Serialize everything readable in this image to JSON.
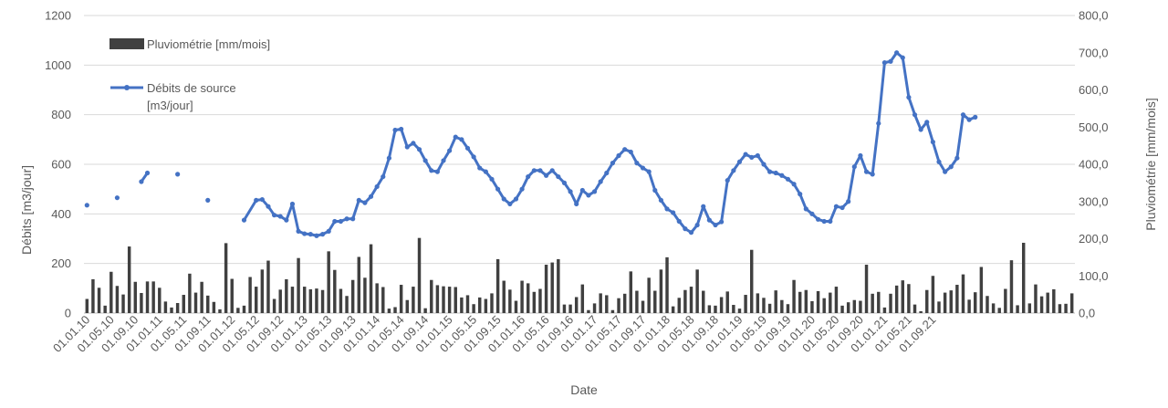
{
  "chart_data": {
    "type": "bar+line",
    "xlabel": "Date",
    "ylabel_left": "Débits [m3/jour]",
    "ylabel_right": "Pluviométrie [mm/mois]",
    "y_left_ticks": [
      "0",
      "200",
      "400",
      "600",
      "800",
      "1000",
      "1200"
    ],
    "y_left_range": [
      0,
      1200
    ],
    "y_right_ticks": [
      "0,0",
      "100,0",
      "200,0",
      "300,0",
      "400,0",
      "500,0",
      "600,0",
      "700,0",
      "800,0"
    ],
    "y_right_range": [
      0,
      800
    ],
    "x_tick_labels": [
      "01.01.10",
      "01.05.10",
      "01.09.10",
      "01.01.11",
      "01.05.11",
      "01.09.11",
      "01.01.12",
      "01.05.12",
      "01.09.12",
      "01.01.13",
      "01.05.13",
      "01.09.13",
      "01.01.14",
      "01.05.14",
      "01.09.14",
      "01.01.15",
      "01.05.15",
      "01.09.15",
      "01.01.16",
      "01.05.16",
      "01.09.16",
      "01.01.17",
      "01.05.17",
      "01.09.17",
      "01.01.18",
      "01.05.18",
      "01.09.18",
      "01.01.19",
      "01.05.19",
      "01.09.19",
      "01.01.20",
      "01.05.20",
      "01.09.20",
      "01.01.21",
      "01.05.21",
      "01.09.21"
    ],
    "grid": true,
    "legend_position": "top-left",
    "series": [
      {
        "name": "Pluviométrie [mm/mois]",
        "type": "bar",
        "axis": "right",
        "color": "#404040",
        "values": [
          38,
          91,
          68,
          20,
          111,
          73,
          50,
          179,
          84,
          54,
          85,
          85,
          68,
          31,
          15,
          27,
          49,
          106,
          55,
          84,
          47,
          30,
          10,
          188,
          92,
          14,
          20,
          97,
          71,
          117,
          141,
          38,
          63,
          91,
          71,
          148,
          71,
          64,
          66,
          62,
          166,
          116,
          65,
          46,
          89,
          151,
          95,
          185,
          80,
          70,
          12,
          16,
          76,
          35,
          71,
          202,
          13,
          89,
          75,
          72,
          71,
          70,
          42,
          48,
          24,
          42,
          38,
          53,
          145,
          87,
          63,
          33,
          87,
          80,
          57,
          65,
          130,
          136,
          145,
          23,
          23,
          43,
          77,
          8,
          26,
          53,
          48,
          8,
          40,
          52,
          112,
          60,
          33,
          95,
          60,
          117,
          150,
          18,
          41,
          62,
          71,
          117,
          60,
          21,
          20,
          43,
          58,
          22,
          12,
          49,
          170,
          53,
          41,
          25,
          61,
          35,
          24,
          89,
          57,
          62,
          32,
          59,
          40,
          55,
          71,
          20,
          29,
          35,
          33,
          130,
          52,
          57,
          15,
          52,
          74,
          88,
          78,
          23,
          5,
          62,
          100,
          31,
          55,
          61,
          76,
          104,
          36,
          56,
          124,
          46,
          26,
          14,
          65,
          142,
          21,
          189,
          26,
          77,
          45,
          55,
          64,
          24,
          25,
          53
        ],
        "notes": "monthly values, Jan 2010 to ~Dec 2021"
      },
      {
        "name": "Débits de source [m3/jour]",
        "type": "line",
        "axis": "left",
        "color": "#4472C4",
        "segments": [
          [
            [
              0,
              435
            ]
          ],
          [
            [
              5,
              465
            ]
          ],
          [
            [
              9,
              530
            ],
            [
              10,
              565
            ]
          ],
          [
            [
              15,
              560
            ]
          ],
          [
            [
              20,
              455
            ]
          ],
          [
            [
              26,
              375
            ],
            [
              28,
              455
            ],
            [
              29,
              458
            ],
            [
              30,
              430
            ],
            [
              31,
              395
            ],
            [
              32,
              390
            ],
            [
              33,
              375
            ],
            [
              34,
              440
            ],
            [
              35,
              330
            ],
            [
              36,
              320
            ],
            [
              37,
              318
            ],
            [
              38,
              312
            ],
            [
              39,
              318
            ],
            [
              40,
              330
            ],
            [
              41,
              370
            ],
            [
              42,
              370
            ],
            [
              43,
              380
            ],
            [
              44,
              380
            ],
            [
              45,
              455
            ],
            [
              46,
              445
            ],
            [
              47,
              470
            ],
            [
              48,
              510
            ],
            [
              49,
              550
            ],
            [
              50,
              625
            ],
            [
              51,
              738
            ],
            [
              52,
              742
            ],
            [
              53,
              670
            ],
            [
              54,
              685
            ],
            [
              55,
              660
            ],
            [
              56,
              615
            ],
            [
              57,
              575
            ],
            [
              58,
              570
            ],
            [
              59,
              615
            ],
            [
              60,
              655
            ],
            [
              61,
              710
            ],
            [
              62,
              700
            ],
            [
              63,
              665
            ],
            [
              64,
              630
            ],
            [
              65,
              585
            ],
            [
              66,
              570
            ],
            [
              67,
              540
            ],
            [
              68,
              500
            ],
            [
              69,
              460
            ],
            [
              70,
              440
            ],
            [
              71,
              460
            ],
            [
              72,
              500
            ],
            [
              73,
              550
            ],
            [
              74,
              575
            ],
            [
              75,
              575
            ],
            [
              76,
              555
            ],
            [
              77,
              575
            ],
            [
              78,
              550
            ],
            [
              79,
              525
            ],
            [
              80,
              490
            ],
            [
              81,
              440
            ],
            [
              82,
              495
            ],
            [
              83,
              475
            ],
            [
              84,
              490
            ],
            [
              85,
              530
            ],
            [
              86,
              565
            ],
            [
              87,
              605
            ],
            [
              88,
              635
            ],
            [
              89,
              660
            ],
            [
              90,
              650
            ],
            [
              91,
              605
            ],
            [
              92,
              585
            ],
            [
              93,
              570
            ],
            [
              94,
              495
            ],
            [
              95,
              455
            ],
            [
              96,
              420
            ],
            [
              97,
              405
            ],
            [
              98,
              370
            ],
            [
              99,
              340
            ],
            [
              100,
              325
            ],
            [
              101,
              355
            ],
            [
              102,
              430
            ],
            [
              103,
              375
            ],
            [
              104,
              355
            ],
            [
              105,
              368
            ],
            [
              106,
              535
            ],
            [
              107,
              575
            ],
            [
              108,
              610
            ],
            [
              109,
              640
            ],
            [
              110,
              628
            ],
            [
              111,
              635
            ],
            [
              112,
              600
            ],
            [
              113,
              570
            ],
            [
              114,
              565
            ],
            [
              115,
              555
            ],
            [
              116,
              540
            ],
            [
              117,
              520
            ],
            [
              118,
              480
            ],
            [
              119,
              420
            ],
            [
              120,
              400
            ],
            [
              121,
              378
            ],
            [
              122,
              370
            ],
            [
              123,
              370
            ],
            [
              124,
              430
            ],
            [
              125,
              425
            ],
            [
              126,
              450
            ],
            [
              127,
              590
            ],
            [
              128,
              635
            ],
            [
              129,
              570
            ],
            [
              130,
              560
            ],
            [
              131,
              765
            ],
            [
              132,
              1010
            ],
            [
              133,
              1015
            ],
            [
              134,
              1050
            ],
            [
              135,
              1030
            ],
            [
              136,
              870
            ],
            [
              137,
              800
            ],
            [
              138,
              740
            ],
            [
              139,
              770
            ],
            [
              140,
              690
            ],
            [
              141,
              610
            ],
            [
              142,
              570
            ],
            [
              143,
              590
            ],
            [
              144,
              625
            ],
            [
              145,
              800
            ],
            [
              146,
              780
            ],
            [
              147,
              790
            ]
          ]
        ]
      }
    ]
  },
  "legend": {
    "rain_label": "Pluviométrie [mm/mois]",
    "flow_label_line1": "Débits de source",
    "flow_label_line2": "[m3/jour]"
  }
}
